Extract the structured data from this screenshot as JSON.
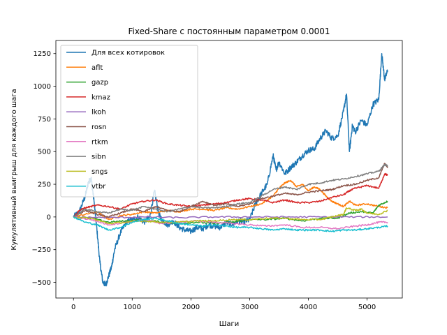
{
  "chart_data": {
    "type": "line",
    "title": "Fixed-Share с постоянным параметром 0.0001",
    "xlabel": "Шаги",
    "ylabel": "Кумулятивный выигрыш для каждого шага",
    "xlim": [
      -300,
      5600
    ],
    "ylim": [
      -620,
      1350
    ],
    "xticks": [
      0,
      1000,
      2000,
      3000,
      4000,
      5000
    ],
    "yticks": [
      -500,
      -250,
      0,
      250,
      500,
      750,
      1000,
      1250
    ],
    "xtick_labels": [
      "0",
      "1000",
      "2000",
      "3000",
      "4000",
      "5000"
    ],
    "ytick_labels": [
      "−500",
      "−250",
      "0",
      "250",
      "500",
      "750",
      "1000",
      "1250"
    ],
    "grid": false,
    "legend_position": "top-left",
    "series": [
      {
        "name": "Для всех котировок",
        "color": "#1f77b4",
        "x": [
          0,
          100,
          200,
          250,
          300,
          350,
          400,
          450,
          500,
          550,
          600,
          650,
          700,
          800,
          900,
          1000,
          1100,
          1200,
          1300,
          1380,
          1450,
          1500,
          1600,
          1700,
          1800,
          1900,
          2000,
          2100,
          2200,
          2300,
          2400,
          2500,
          2600,
          2700,
          2800,
          2900,
          3000,
          3100,
          3200,
          3300,
          3400,
          3450,
          3500,
          3600,
          3700,
          3800,
          3900,
          4000,
          4100,
          4200,
          4300,
          4400,
          4500,
          4600,
          4650,
          4700,
          4750,
          4800,
          4900,
          5000,
          5100,
          5200,
          5250,
          5300,
          5350
        ],
        "y": [
          0,
          40,
          160,
          260,
          300,
          120,
          -100,
          -350,
          -500,
          -520,
          -450,
          -380,
          -250,
          -120,
          -40,
          -20,
          0,
          -40,
          0,
          200,
          30,
          -20,
          -60,
          -30,
          -80,
          -100,
          -110,
          -80,
          -90,
          -60,
          -70,
          -80,
          -40,
          -60,
          -30,
          -40,
          -20,
          100,
          180,
          250,
          470,
          360,
          420,
          330,
          380,
          420,
          470,
          510,
          520,
          600,
          660,
          600,
          620,
          810,
          940,
          500,
          700,
          650,
          740,
          700,
          860,
          900,
          1250,
          1050,
          1120
        ]
      },
      {
        "name": "aflt",
        "color": "#ff7f0e",
        "x": [
          0,
          200,
          400,
          600,
          800,
          1000,
          1200,
          1400,
          1600,
          1800,
          2000,
          2200,
          2400,
          2600,
          2800,
          3000,
          3200,
          3400,
          3500,
          3600,
          3700,
          3800,
          3900,
          4000,
          4100,
          4200,
          4300,
          4400,
          4500,
          4600,
          4700,
          4800,
          5000,
          5200,
          5350
        ],
        "y": [
          0,
          20,
          40,
          -20,
          10,
          20,
          40,
          30,
          50,
          40,
          60,
          60,
          50,
          70,
          60,
          80,
          100,
          160,
          220,
          260,
          280,
          230,
          250,
          200,
          230,
          210,
          160,
          120,
          100,
          80,
          120,
          90,
          100,
          80,
          70
        ]
      },
      {
        "name": "gazp",
        "color": "#2ca02c",
        "x": [
          0,
          300,
          600,
          900,
          1200,
          1500,
          1800,
          2100,
          2400,
          2700,
          3000,
          3300,
          3600,
          3900,
          4200,
          4500,
          4700,
          4900,
          5100,
          5200,
          5350
        ],
        "y": [
          0,
          -10,
          -40,
          -30,
          -20,
          -40,
          -50,
          -40,
          -50,
          -40,
          -20,
          -20,
          -10,
          -30,
          -10,
          -10,
          30,
          40,
          30,
          90,
          120
        ]
      },
      {
        "name": "kmaz",
        "color": "#d62728",
        "x": [
          0,
          100,
          200,
          400,
          600,
          800,
          1000,
          1200,
          1400,
          1600,
          1800,
          2000,
          2200,
          2400,
          2600,
          2800,
          3000,
          3200,
          3400,
          3600,
          3800,
          4000,
          4200,
          4400,
          4600,
          4700,
          4800,
          5000,
          5200,
          5300,
          5350
        ],
        "y": [
          0,
          50,
          70,
          90,
          80,
          60,
          100,
          120,
          130,
          100,
          90,
          80,
          90,
          100,
          110,
          130,
          140,
          130,
          110,
          130,
          110,
          110,
          120,
          150,
          170,
          200,
          220,
          240,
          220,
          330,
          320
        ]
      },
      {
        "name": "lkoh",
        "color": "#9467bd",
        "x": [
          0,
          600,
          1200,
          1800,
          2400,
          3000,
          3600,
          4200,
          4800,
          5350
        ],
        "y": [
          0,
          -5,
          0,
          -5,
          0,
          0,
          0,
          0,
          0,
          0
        ]
      },
      {
        "name": "rosn",
        "color": "#8c564b",
        "x": [
          0,
          200,
          400,
          600,
          800,
          1000,
          1200,
          1400,
          1600,
          1800,
          2000,
          2200,
          2400,
          2600,
          2800,
          3000,
          3200,
          3400,
          3600,
          3800,
          4000,
          4200,
          4400,
          4600,
          4800,
          5000,
          5200,
          5300,
          5350
        ],
        "y": [
          0,
          50,
          20,
          0,
          30,
          60,
          40,
          80,
          50,
          40,
          80,
          120,
          90,
          100,
          80,
          100,
          140,
          160,
          180,
          170,
          190,
          200,
          210,
          240,
          250,
          280,
          300,
          410,
          380
        ]
      },
      {
        "name": "rtkm",
        "color": "#e377c2",
        "x": [
          0,
          300,
          600,
          900,
          1200,
          1500,
          1800,
          2100,
          2400,
          2700,
          3000,
          3300,
          3600,
          3900,
          4200,
          4500,
          4800,
          5000,
          5200,
          5350
        ],
        "y": [
          0,
          -20,
          -60,
          -40,
          -20,
          -50,
          -40,
          -30,
          -40,
          -50,
          -60,
          -70,
          -60,
          -80,
          -80,
          -90,
          -70,
          -60,
          -40,
          -40
        ]
      },
      {
        "name": "sibn",
        "color": "#7f7f7f",
        "x": [
          0,
          200,
          400,
          600,
          800,
          1000,
          1200,
          1400,
          1600,
          1800,
          2000,
          2200,
          2400,
          2600,
          2800,
          3000,
          3200,
          3400,
          3600,
          3800,
          4000,
          4200,
          4400,
          4600,
          4800,
          5000,
          5200,
          5300,
          5350
        ],
        "y": [
          0,
          60,
          40,
          30,
          60,
          50,
          80,
          60,
          40,
          60,
          80,
          70,
          70,
          80,
          100,
          110,
          160,
          210,
          230,
          210,
          250,
          260,
          280,
          290,
          310,
          330,
          350,
          400,
          390
        ]
      },
      {
        "name": "sngs",
        "color": "#bcbd22",
        "x": [
          0,
          300,
          600,
          900,
          1200,
          1500,
          1800,
          2100,
          2400,
          2700,
          3000,
          3300,
          3600,
          3900,
          4200,
          4400,
          4600,
          4650,
          4800,
          4900,
          5000,
          5200,
          5350
        ],
        "y": [
          0,
          -10,
          -50,
          -40,
          -30,
          -40,
          -40,
          -30,
          -30,
          -20,
          -20,
          -10,
          -10,
          -20,
          -20,
          0,
          20,
          70,
          50,
          60,
          30,
          20,
          50
        ]
      },
      {
        "name": "vtbr",
        "color": "#17becf",
        "x": [
          0,
          200,
          400,
          600,
          800,
          1000,
          1200,
          1400,
          1600,
          1800,
          2000,
          2200,
          2400,
          2600,
          2800,
          3000,
          3200,
          3400,
          3600,
          3800,
          4000,
          4200,
          4400,
          4600,
          4800,
          5000,
          5200,
          5350
        ],
        "y": [
          0,
          -40,
          -60,
          -100,
          -80,
          -40,
          -20,
          -10,
          -30,
          -50,
          -60,
          -70,
          -60,
          -70,
          -80,
          -80,
          -90,
          -100,
          -90,
          -100,
          -100,
          -100,
          -110,
          -100,
          -100,
          -90,
          -80,
          -70
        ]
      }
    ]
  }
}
